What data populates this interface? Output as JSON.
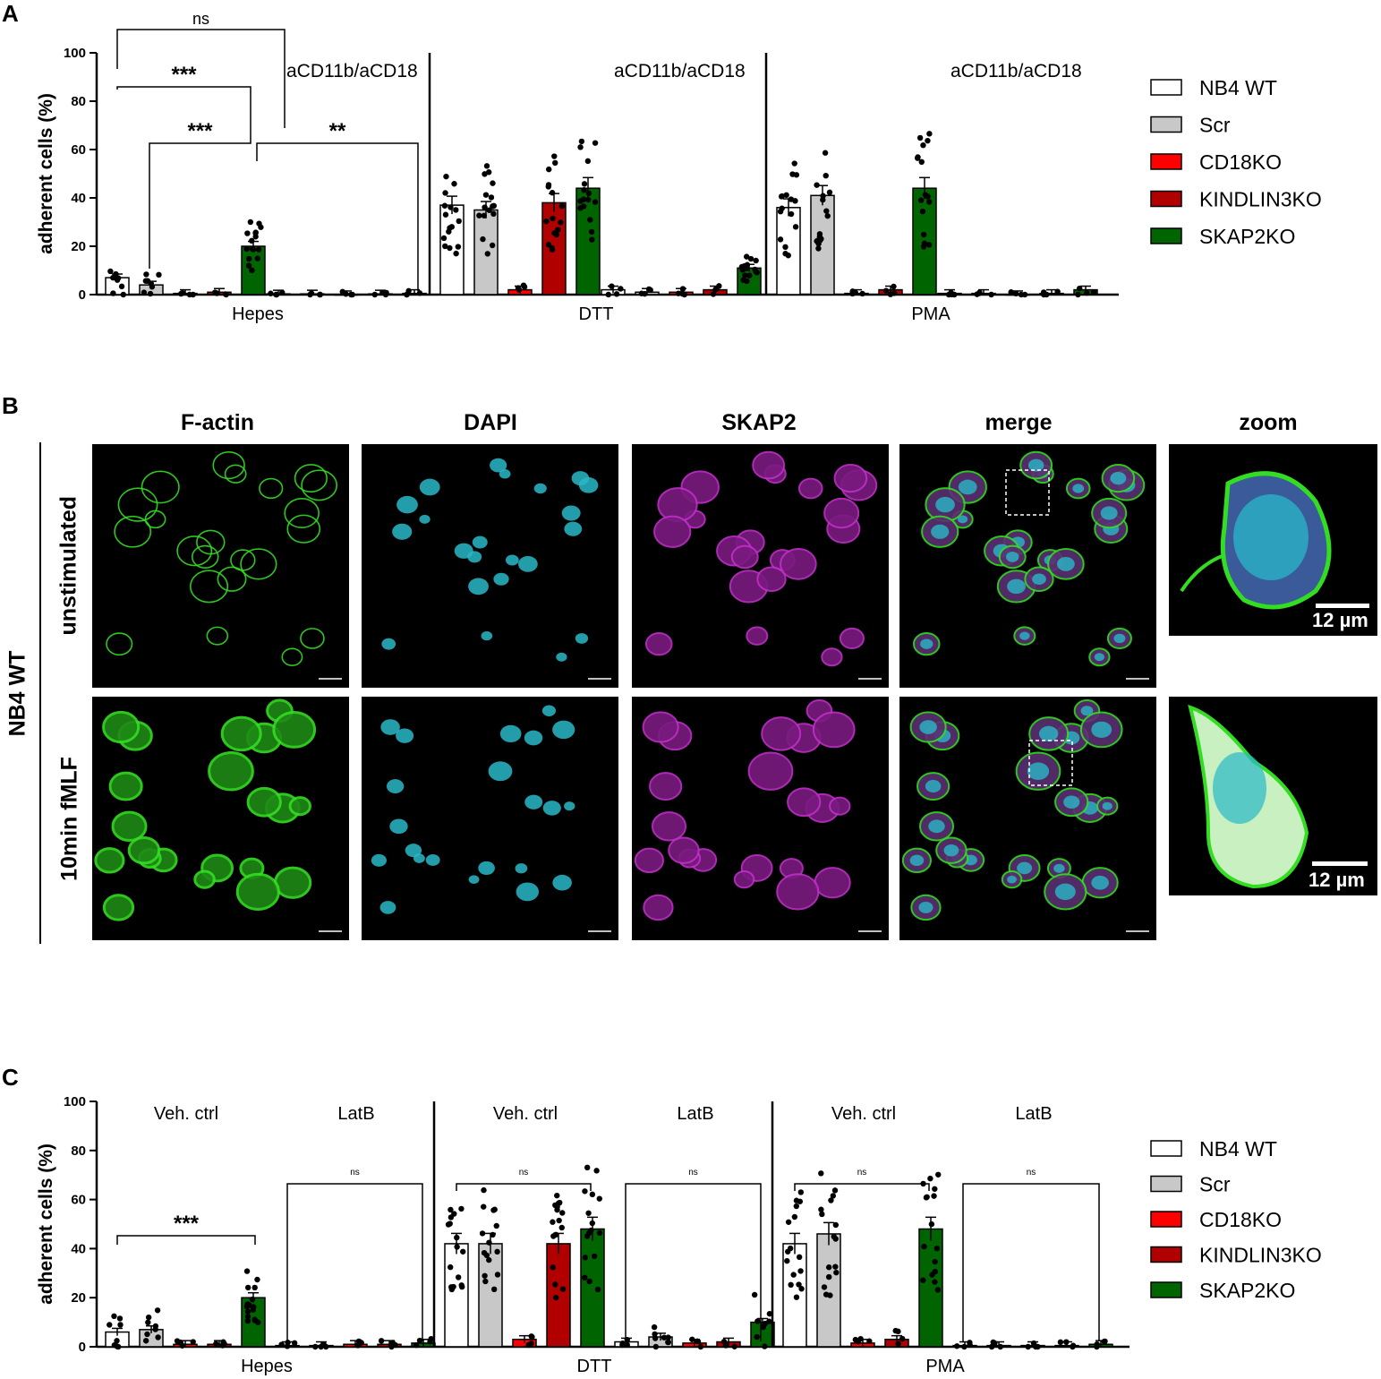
{
  "panels": {
    "A": "A",
    "B": "B",
    "C": "C"
  },
  "legend": [
    "NB4 WT",
    "Scr",
    "CD18KO",
    "KINDLIN3KO",
    "SKAP2KO"
  ],
  "legend_colors": [
    "#ffffff",
    "#c8c8c8",
    "#ff0000",
    "#b00000",
    "#006400"
  ],
  "panelB": {
    "columns": [
      "F-actin",
      "DAPI",
      "SKAP2",
      "merge",
      "zoom"
    ],
    "rows": [
      "unstimulated",
      "10min fMLF"
    ],
    "group_label": "NB4 WT",
    "zoom_scale": "12 µm",
    "channel_colors": {
      "factin": "#33dd22",
      "dapi": "#2ab8c8",
      "skap2": "#c030c8"
    }
  },
  "chart_data": [
    {
      "type": "bar",
      "panel": "A",
      "ylabel": "adherent cells (%)",
      "ylim": [
        0,
        100
      ],
      "yticks": [
        0,
        20,
        40,
        60,
        80,
        100
      ],
      "groups": [
        "Hepes",
        "DTT",
        "PMA"
      ],
      "series": [
        "NB4 WT",
        "Scr",
        "CD18KO",
        "KINDLIN3KO",
        "SKAP2KO"
      ],
      "annotation": "aCD11b/aCD18",
      "subgroups": [
        "",
        "aCD11b/aCD18"
      ],
      "values": {
        "Hepes": [
          [
            7,
            4,
            0.5,
            1,
            20
          ],
          [
            0.3,
            0.3,
            0,
            0.3,
            0.5
          ]
        ],
        "DTT": [
          [
            37,
            35,
            2,
            38,
            44
          ],
          [
            2,
            1,
            1,
            2,
            11
          ]
        ],
        "PMA": [
          [
            36,
            41,
            0.5,
            2,
            44
          ],
          [
            0.5,
            0.5,
            0,
            0.5,
            2
          ]
        ]
      },
      "significance": [
        {
          "label": "ns"
        },
        {
          "label": "***"
        },
        {
          "label": "***"
        },
        {
          "label": "**"
        }
      ]
    },
    {
      "type": "bar",
      "panel": "C",
      "ylabel": "adherent cells (%)",
      "ylim": [
        0,
        100
      ],
      "yticks": [
        0,
        20,
        40,
        60,
        80,
        100
      ],
      "groups": [
        "Hepes",
        "DTT",
        "PMA"
      ],
      "subgroups": [
        "Veh. ctrl",
        "LatB"
      ],
      "series": [
        "NB4 WT",
        "Scr",
        "CD18KO",
        "KINDLIN3KO",
        "SKAP2KO"
      ],
      "values": {
        "Hepes": [
          [
            6,
            7,
            1,
            1,
            20
          ],
          [
            0.5,
            0.5,
            1,
            1,
            1.5
          ]
        ],
        "DTT": [
          [
            42,
            42,
            3,
            42,
            48
          ],
          [
            2,
            4,
            1.5,
            2,
            10
          ]
        ],
        "PMA": [
          [
            42,
            46,
            1.5,
            3,
            48
          ],
          [
            0.5,
            0.5,
            0.5,
            0.5,
            1
          ]
        ]
      },
      "significance": [
        {
          "label": "***"
        },
        {
          "label": "ns"
        },
        {
          "label": "ns"
        },
        {
          "label": "ns"
        },
        {
          "label": "ns"
        },
        {
          "label": "ns"
        }
      ]
    }
  ]
}
